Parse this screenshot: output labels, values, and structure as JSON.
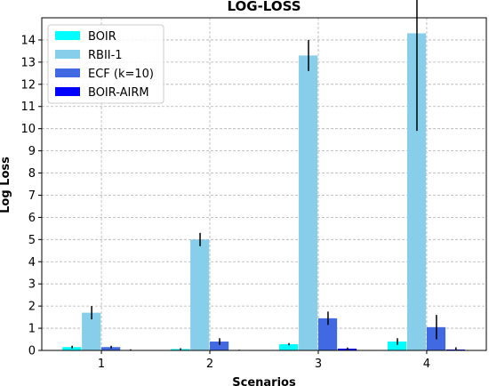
{
  "chart_data": {
    "type": "bar",
    "title": "LOG-LOSS",
    "xlabel": "Scenarios",
    "ylabel": "Log Loss",
    "categories": [
      "1",
      "2",
      "3",
      "4"
    ],
    "ylim": [
      0,
      15
    ],
    "yticks": [
      0,
      1,
      2,
      3,
      4,
      5,
      6,
      7,
      8,
      9,
      10,
      11,
      12,
      13,
      14
    ],
    "grid": true,
    "legend_position": "top-left",
    "series": [
      {
        "name": "BOIR",
        "color": "#00ffff",
        "values": [
          0.15,
          0.06,
          0.28,
          0.4
        ],
        "errors": [
          0.06,
          0.04,
          0.05,
          0.15
        ]
      },
      {
        "name": "RBII-1",
        "color": "#87ceeb",
        "values": [
          1.7,
          5.0,
          13.3,
          14.3
        ],
        "errors": [
          0.3,
          0.3,
          0.7,
          4.4
        ]
      },
      {
        "name": "ECF (k=10)",
        "color": "#4169e1",
        "values": [
          0.15,
          0.4,
          1.45,
          1.05
        ],
        "errors": [
          0.06,
          0.15,
          0.3,
          0.55
        ]
      },
      {
        "name": "BOIR-AIRM",
        "color": "#0000ff",
        "values": [
          0.02,
          0.01,
          0.08,
          0.04
        ],
        "errors": [
          0.03,
          0.02,
          0.05,
          0.1
        ]
      }
    ]
  }
}
